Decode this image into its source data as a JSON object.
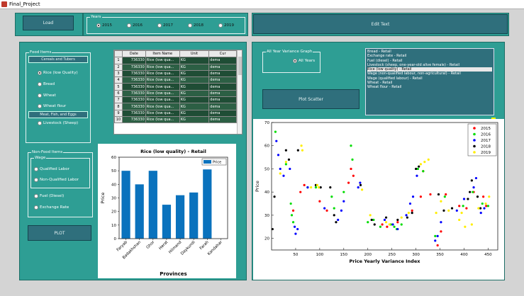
{
  "window": {
    "title": "Final_Project"
  },
  "top": {
    "load_label": "Load",
    "years_group_label": "Years",
    "years": [
      "2015",
      "2016",
      "2017",
      "2018",
      "2019"
    ],
    "years_selected": 0,
    "edit_text_label": "Edit Text"
  },
  "food_items": {
    "group_label": "Food Items",
    "cereals_label": "Cereals and Tubers",
    "options": [
      "Rice (low Quality)",
      "Bread",
      "Wheat",
      "Wheat flour"
    ],
    "selected": 0,
    "meat_label": "Meat, Fish, and Eggs",
    "livestock_label": "Livestock (Sheep)"
  },
  "non_food": {
    "group_label": "Non-Food Items",
    "wage_label": "Wage",
    "wage_options": [
      "Qualified Labor",
      "Non-Qualified Labor"
    ],
    "options": [
      "Fuel (Diesel)",
      "Exchange Rate"
    ]
  },
  "plot_button_label": "PLOT",
  "table": {
    "columns": [
      "Date",
      "Item Name",
      "Unit",
      "Cur"
    ],
    "rows": [
      [
        "1",
        "736330",
        "Rice (low qua...",
        "KG",
        "dema"
      ],
      [
        "2",
        "736330",
        "Rice (low qua...",
        "KG",
        "dema"
      ],
      [
        "3",
        "736330",
        "Rice (low qua...",
        "KG",
        "dema"
      ],
      [
        "4",
        "736330",
        "Rice (low qua...",
        "KG",
        "dema"
      ],
      [
        "5",
        "736330",
        "Rice (low qua...",
        "KG",
        "dema"
      ],
      [
        "6",
        "736330",
        "Rice (low qua...",
        "KG",
        "dema"
      ],
      [
        "7",
        "736330",
        "Rice (low qua...",
        "KG",
        "dema"
      ],
      [
        "8",
        "736330",
        "Rice (low qua...",
        "KG",
        "dema"
      ],
      [
        "9",
        "736330",
        "Rice (low qua...",
        "KG",
        "dema"
      ],
      [
        "10",
        "736330",
        "Rice (low qua...",
        "KG",
        "dema"
      ]
    ]
  },
  "variance": {
    "group_label": "All Year Variance Graph",
    "option_label": "All Years",
    "plot_scatter_label": "Plot Scatter",
    "list_items": [
      "Bread - Retail",
      "Exchange rate - Retail",
      "Fuel (diesel) - Retail",
      "Livestock (sheep, one-year-old alive female) - Retail",
      "Rice (low quality) - Retail",
      "Wage (non-qualified labour, non-agricultural) - Retail",
      "Wage (qualified labour) - Retail",
      "Wheat - Retail",
      "Wheat flour - Retail"
    ],
    "list_selected": 4
  },
  "colors": {
    "teal": "#2e9e94",
    "button": "#2f6f7c",
    "bar": "#0a72bd",
    "y2015": "#ff0000",
    "y2016": "#00dd00",
    "y2017": "#0000ff",
    "y2018": "#000000",
    "y2019": "#ffee00"
  },
  "chart_data": [
    {
      "type": "bar",
      "title": "Rice (low quality) - Retail",
      "xlabel": "Provinces",
      "ylabel": "Price",
      "ylim": [
        0,
        60
      ],
      "yticks": [
        0,
        10,
        20,
        30,
        40,
        50,
        60
      ],
      "legend": "Price",
      "legend_position": "top-right",
      "categories": [
        "Faryab",
        "Badakhshan",
        "Ghor",
        "Herat",
        "Hilmand",
        "Daykundi",
        "Farah",
        "Kandahar"
      ],
      "series": [
        {
          "name": "Price",
          "values": [
            50,
            40,
            50,
            25,
            32,
            34,
            51,
            0
          ]
        }
      ]
    },
    {
      "type": "scatter",
      "xlabel": "Price Yearly Variance Index",
      "ylabel": "Price",
      "xlim": [
        0,
        470
      ],
      "ylim": [
        15,
        70
      ],
      "xticks": [
        50,
        100,
        150,
        200,
        250,
        300,
        350,
        400,
        450
      ],
      "yticks": [
        20,
        30,
        40,
        50,
        60,
        70
      ],
      "legend_position": "top-right",
      "series": [
        {
          "name": "2015",
          "points": [
            [
              45,
              32
            ],
            [
              60,
              40
            ],
            [
              68,
              43
            ],
            [
              100,
              36
            ],
            [
              115,
              32
            ],
            [
              160,
              44
            ],
            [
              165,
              50
            ],
            [
              170,
              47
            ],
            [
              230,
              26
            ],
            [
              240,
              25
            ],
            [
              262,
              27
            ],
            [
              292,
              32
            ],
            [
              310,
              38
            ],
            [
              315,
              49
            ],
            [
              330,
              39
            ],
            [
              345,
              17
            ],
            [
              352,
              23
            ],
            [
              362,
              39
            ],
            [
              390,
              34
            ],
            [
              405,
              33
            ],
            [
              420,
              40
            ],
            [
              440,
              38
            ],
            [
              446,
              34
            ]
          ]
        },
        {
          "name": "2016",
          "points": [
            [
              8,
              66
            ],
            [
              30,
              52
            ],
            [
              40,
              35
            ],
            [
              42,
              30
            ],
            [
              45,
              27
            ],
            [
              75,
              42
            ],
            [
              92,
              42
            ],
            [
              125,
              38
            ],
            [
              130,
              33
            ],
            [
              150,
              40
            ],
            [
              165,
              60
            ],
            [
              168,
              54
            ],
            [
              200,
              27
            ],
            [
              212,
              28
            ],
            [
              226,
              25
            ],
            [
              248,
              26
            ],
            [
              255,
              25
            ],
            [
              260,
              24
            ],
            [
              270,
              26
            ],
            [
              304,
              50
            ],
            [
              315,
              49
            ],
            [
              340,
              21
            ],
            [
              360,
              38
            ],
            [
              398,
              34
            ],
            [
              418,
              40
            ],
            [
              438,
              35
            ],
            [
              450,
              34
            ]
          ]
        },
        {
          "name": "2017",
          "points": [
            [
              10,
              62
            ],
            [
              14,
              56
            ],
            [
              18,
              50
            ],
            [
              25,
              47
            ],
            [
              38,
              50
            ],
            [
              48,
              25
            ],
            [
              50,
              22
            ],
            [
              54,
              24
            ],
            [
              75,
              42
            ],
            [
              110,
              33
            ],
            [
              138,
              28
            ],
            [
              145,
              32
            ],
            [
              150,
              36
            ],
            [
              180,
              42
            ],
            [
              184,
              44
            ],
            [
              235,
              28
            ],
            [
              252,
              26
            ],
            [
              262,
              24
            ],
            [
              280,
              30
            ],
            [
              288,
              35
            ],
            [
              294,
              38
            ],
            [
              302,
              47
            ],
            [
              340,
              19
            ],
            [
              345,
              21
            ],
            [
              352,
              27
            ],
            [
              385,
              32
            ],
            [
              400,
              37
            ],
            [
              420,
              42
            ],
            [
              425,
              46
            ],
            [
              435,
              31
            ],
            [
              442,
              33
            ]
          ]
        },
        {
          "name": "2018",
          "points": [
            [
              2,
              24
            ],
            [
              6,
              38
            ],
            [
              30,
              58
            ],
            [
              36,
              54
            ],
            [
              55,
              58
            ],
            [
              92,
              43
            ],
            [
              102,
              42
            ],
            [
              122,
              42
            ],
            [
              130,
              30
            ],
            [
              134,
              27
            ],
            [
              185,
              43
            ],
            [
              208,
              28
            ],
            [
              214,
              26
            ],
            [
              238,
              29
            ],
            [
              262,
              28
            ],
            [
              282,
              29
            ],
            [
              292,
              31
            ],
            [
              300,
              50
            ],
            [
              306,
              51
            ],
            [
              347,
              39
            ],
            [
              358,
              32
            ],
            [
              375,
              33
            ],
            [
              408,
              37
            ],
            [
              412,
              40
            ],
            [
              416,
              45
            ],
            [
              428,
              38
            ],
            [
              434,
              33
            ]
          ]
        },
        {
          "name": "2019",
          "points": [
            [
              18,
              48
            ],
            [
              30,
              53
            ],
            [
              62,
              60
            ],
            [
              64,
              58
            ],
            [
              82,
              42
            ],
            [
              95,
              43
            ],
            [
              98,
              42
            ],
            [
              188,
              41
            ],
            [
              205,
              30
            ],
            [
              238,
              27
            ],
            [
              245,
              26
            ],
            [
              270,
              29
            ],
            [
              285,
              31
            ],
            [
              310,
              52
            ],
            [
              318,
              53
            ],
            [
              326,
              54
            ],
            [
              342,
              31
            ],
            [
              352,
              36
            ],
            [
              368,
              32
            ],
            [
              390,
              28
            ],
            [
              395,
              31
            ],
            [
              402,
              25
            ],
            [
              416,
              26
            ],
            [
              430,
              33
            ],
            [
              445,
              35
            ],
            [
              452,
              38
            ]
          ]
        }
      ]
    }
  ]
}
